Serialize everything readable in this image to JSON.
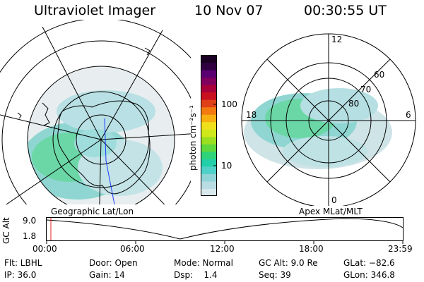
{
  "header": {
    "instrument": "Ultraviolet Imager",
    "date": "10 Nov 07",
    "time": "00:30:55 UT"
  },
  "left_panel": {
    "label": "Geographic Lat/Lon"
  },
  "right_panel": {
    "label": "Apex MLat/MLT",
    "mlt_labels": [
      "12",
      "18",
      "6",
      "0"
    ],
    "mlat_labels": [
      "60",
      "70",
      "80"
    ]
  },
  "colorbar": {
    "label": "photon cm⁻²s⁻¹",
    "tick_labels": [
      "100",
      "10"
    ],
    "colors": [
      "#d9e8ec",
      "#b8dde3",
      "#90d4d8",
      "#4fd0c8",
      "#22cfa8",
      "#2fd47a",
      "#5fd83e",
      "#9ae020",
      "#cfe81a",
      "#f0e01c",
      "#f7b010",
      "#f27a10",
      "#e04018",
      "#c81020",
      "#a8003a",
      "#80005e",
      "#5a0070",
      "#300040",
      "#1a0022"
    ]
  },
  "timeline": {
    "ylabel": "GC Alt",
    "ytick_labels": [
      "9.0",
      "1.8"
    ],
    "xtick_labels": [
      "00:00",
      "06:00",
      "12:00",
      "18:00",
      "23:59"
    ]
  },
  "info": {
    "col1": [
      "Flt: LBHL",
      "IP: 36.0"
    ],
    "col2": [
      "Door: Open",
      "Gain: 14"
    ],
    "col3": [
      "Mode: Normal",
      "Dsp:    1.4"
    ],
    "col4": [
      "GC Alt: 9.0 Re",
      "Seq: 39"
    ],
    "col5": [
      "GLat: −82.6",
      "GLon: 346.8"
    ]
  }
}
